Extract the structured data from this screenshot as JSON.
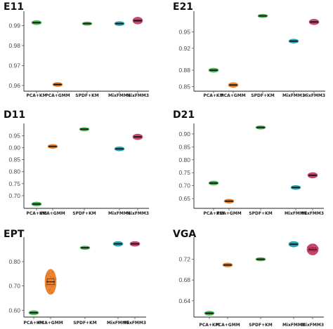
{
  "figure": {
    "panel_titles": [
      "E11",
      "E21",
      "D11",
      "D21",
      "EPT",
      "VGA"
    ]
  },
  "chart_data": [
    {
      "type": "scatter",
      "title": "E11",
      "categories": [
        "PCA+KM",
        "PCA+GMM",
        "SPDF+KM",
        "MixFMM1",
        "MixFMM3"
      ],
      "values": [
        0.9915,
        0.9605,
        0.991,
        0.991,
        0.9925
      ],
      "colors": [
        "#3bb54a",
        "#e8791d",
        "#45b34c",
        "#1ba2b0",
        "#c8365e"
      ],
      "yticks": [
        0.96,
        0.97,
        0.98,
        0.99
      ],
      "ytick_labels": [
        "0.96",
        "0.97",
        "0.98",
        "0.99"
      ],
      "ylim": [
        0.9575,
        0.9965
      ]
    },
    {
      "type": "scatter",
      "title": "E21",
      "categories": [
        "PCA+KM",
        "PCA+GMM",
        "SPDF+KM",
        "MixFMM1",
        "MixFMM3"
      ],
      "values": [
        0.88,
        0.853,
        0.979,
        0.933,
        0.968
      ],
      "colors": [
        "#3bb54a",
        "#e8791d",
        "#45b34c",
        "#1ba2b0",
        "#c8365e"
      ],
      "yticks": [
        0.85,
        0.88,
        0.92,
        0.95
      ],
      "ytick_labels": [
        "0.85",
        "0.88",
        "0.92",
        "0.95"
      ],
      "ylim": [
        0.843,
        0.985
      ]
    },
    {
      "type": "scatter",
      "title": "D11",
      "categories": [
        "PCA+KM",
        "PCA+GMM",
        "SPDF+KM",
        "MixFMM1",
        "MixFMM3"
      ],
      "values": [
        0.665,
        0.905,
        0.977,
        0.895,
        0.945
      ],
      "colors": [
        "#3bb54a",
        "#e8791d",
        "#45b34c",
        "#1ba2b0",
        "#c8365e"
      ],
      "yticks": [
        0.7,
        0.75,
        0.8,
        0.85,
        0.9,
        0.95
      ],
      "ytick_labels": [
        "0.70",
        "0.75",
        "0.80",
        "0.85",
        "0.90",
        "0.95"
      ],
      "ylim": [
        0.65,
        0.995
      ]
    },
    {
      "type": "scatter",
      "title": "D21",
      "categories": [
        "PCA+KM",
        "PCA+GMM",
        "SPDF+KM",
        "MixFMM1",
        "MixFMM3"
      ],
      "values": [
        0.71,
        0.64,
        0.925,
        0.693,
        0.74
      ],
      "colors": [
        "#3bb54a",
        "#e8791d",
        "#45b34c",
        "#1ba2b0",
        "#c8365e"
      ],
      "yticks": [
        0.65,
        0.7,
        0.75,
        0.8,
        0.85,
        0.9
      ],
      "ytick_labels": [
        "0.65",
        "0.70",
        "0.75",
        "0.80",
        "0.85",
        "0.90"
      ],
      "ylim": [
        0.615,
        0.935
      ]
    },
    {
      "type": "scatter",
      "title": "EPT",
      "categories": [
        "PCA+KM",
        "PCA+GMM",
        "SPDF+KM",
        "MixFMM1",
        "MixFMM3"
      ],
      "values": [
        0.59,
        0.717,
        0.857,
        0.873,
        0.873
      ],
      "colors": [
        "#3bb54a",
        "#e8791d",
        "#45b34c",
        "#1ba2b0",
        "#c8365e"
      ],
      "yticks": [
        0.6,
        0.7,
        0.8
      ],
      "ytick_labels": [
        "0.60",
        "0.70",
        "0.80"
      ],
      "ylim": [
        0.575,
        0.895
      ]
    },
    {
      "type": "scatter",
      "title": "VGA",
      "categories": [
        "PCA+KM",
        "PCA+GMM",
        "SPDF+KM",
        "MixFMM1",
        "MixFMM3"
      ],
      "values": [
        0.616,
        0.709,
        0.72,
        0.749,
        0.739
      ],
      "colors": [
        "#3bb54a",
        "#e8791d",
        "#45b34c",
        "#1ba2b0",
        "#c8365e"
      ],
      "yticks": [
        0.64,
        0.68,
        0.72
      ],
      "ytick_labels": [
        "0.64",
        "0.68",
        "0.72"
      ],
      "ylim": [
        0.61,
        0.76
      ]
    }
  ]
}
